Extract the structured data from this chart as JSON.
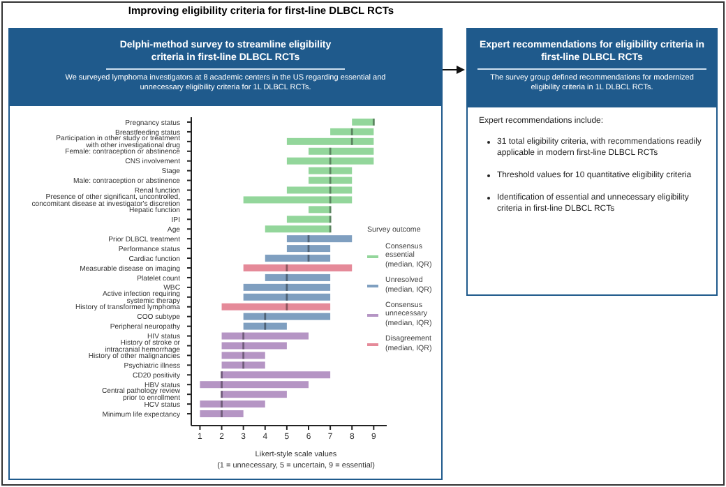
{
  "chart_data": {
    "type": "box",
    "orientation": "horizontal",
    "title": "Improving eligibility criteria for first-line DLBCL RCTs",
    "subtitle": "Delphi-method survey to streamline eligibility criteria in first-line DLBCL RCTs",
    "annotations": [
      "We surveyed lymphoma investigators at 8 academic centers in the US regarding essential and unnecessary eligibility criteria for 1L DLBCL RCTs.",
      "Expert recommendations for eligibility criteria in first-line DLBCL RCTs",
      "The survey group defined recommendations for modernized eligibility criteria in 1L DLBCL RCTs.",
      "Expert recommendations include:",
      "31 total eligibility criteria, with recommendations readily applicable in modern first-line DLBCL RCTs",
      "Threshold values for 10 quantitative eligibility criteria",
      "Identification of essential and unnecessary eligibility criteria in first-line DLBCL RCTs"
    ],
    "xlabel": "Likert-style scale values (1 = unnecessary, 5 = uncertain, 9 = essential)",
    "categories": [
      "Pregnancy status",
      "Breastfeeding status",
      "Participation in other study or treatment with other investigational drug",
      "Female: contraception or abstinence",
      "CNS involvement",
      "Stage",
      "Male: contraception or abstinence",
      "Renal function",
      "Presence of other significant, uncontrolled, concomitant disease at investigator's discretion",
      "Hepatic function",
      "IPI",
      "Age",
      "Prior DLBCL treatment",
      "Performance status",
      "Cardiac function",
      "Measurable disease on imaging",
      "Platelet count",
      "WBC",
      "Active infection requiring systemic therapy",
      "History of transformed lymphoma",
      "COO subtype",
      "Peripheral neuropathy",
      "HIV status",
      "History of stroke or intracranial hemorrhage",
      "History of other malignancies",
      "Psychiatric illness",
      "CD20 positivity",
      "HBV status",
      "Central pathology review prior to enrollment",
      "HCV status",
      "Minimum life expectancy"
    ],
    "series": [
      {
        "name": "Consensus essential (median, IQR)",
        "color": "#93d69b",
        "boxes": [
          {
            "low": 8,
            "q1": 8,
            "median": 9,
            "q3": 9,
            "high": 9
          },
          {
            "low": 7,
            "q1": 7,
            "median": 8,
            "q3": 9,
            "high": 9
          },
          {
            "low": 5,
            "q1": 5,
            "median": 8,
            "q3": 9,
            "high": 9
          },
          {
            "low": 6,
            "q1": 6,
            "median": 7,
            "q3": 9,
            "high": 9
          },
          {
            "low": 5,
            "q1": 5,
            "median": 7,
            "q3": 9,
            "high": 9
          },
          {
            "low": 6,
            "q1": 6,
            "median": 7,
            "q3": 8,
            "high": 8
          },
          {
            "low": 6,
            "q1": 6,
            "median": 7,
            "q3": 8,
            "high": 8
          },
          {
            "low": 5,
            "q1": 5,
            "median": 7,
            "q3": 8,
            "high": 8
          },
          {
            "low": 3,
            "q1": 3,
            "median": 7,
            "q3": 8,
            "high": 8
          },
          {
            "low": 6,
            "q1": 6,
            "median": 7,
            "q3": 7,
            "high": 7
          },
          {
            "low": 5,
            "q1": 5,
            "median": 7,
            "q3": 7,
            "high": 7
          },
          {
            "low": 4,
            "q1": 4,
            "median": 7,
            "q3": 7,
            "high": 7
          },
          null,
          null,
          null,
          null,
          null,
          null,
          null,
          null,
          null,
          null,
          null,
          null,
          null,
          null,
          null,
          null,
          null,
          null,
          null
        ]
      },
      {
        "name": "Unresolved (median, IQR)",
        "color": "#7f9fc0",
        "boxes": [
          null,
          null,
          null,
          null,
          null,
          null,
          null,
          null,
          null,
          null,
          null,
          null,
          {
            "low": 5,
            "q1": 5,
            "median": 6,
            "q3": 8,
            "high": 8
          },
          {
            "low": 5,
            "q1": 5,
            "median": 6,
            "q3": 7,
            "high": 7
          },
          {
            "low": 4,
            "q1": 4,
            "median": 6,
            "q3": 7,
            "high": 7
          },
          null,
          {
            "low": 4,
            "q1": 4,
            "median": 5,
            "q3": 7,
            "high": 7
          },
          {
            "low": 3,
            "q1": 3,
            "median": 5,
            "q3": 7,
            "high": 7
          },
          {
            "low": 3,
            "q1": 3,
            "median": 5,
            "q3": 7,
            "high": 7
          },
          null,
          {
            "low": 3,
            "q1": 3,
            "median": 4,
            "q3": 7,
            "high": 7
          },
          {
            "low": 3,
            "q1": 3,
            "median": 4,
            "q3": 5,
            "high": 5
          },
          null,
          null,
          null,
          null,
          null,
          null,
          null,
          null,
          null
        ]
      },
      {
        "name": "Consensus unnecessary (median, IQR)",
        "color": "#b595c4",
        "boxes": [
          null,
          null,
          null,
          null,
          null,
          null,
          null,
          null,
          null,
          null,
          null,
          null,
          null,
          null,
          null,
          null,
          null,
          null,
          null,
          null,
          null,
          null,
          {
            "low": 2,
            "q1": 2,
            "median": 3,
            "q3": 6,
            "high": 6
          },
          {
            "low": 2,
            "q1": 2,
            "median": 3,
            "q3": 5,
            "high": 5
          },
          {
            "low": 2,
            "q1": 2,
            "median": 3,
            "q3": 4,
            "high": 4
          },
          {
            "low": 2,
            "q1": 2,
            "median": 3,
            "q3": 4,
            "high": 4
          },
          {
            "low": 2,
            "q1": 2,
            "median": 2,
            "q3": 7,
            "high": 7
          },
          {
            "low": 1,
            "q1": 1,
            "median": 2,
            "q3": 6,
            "high": 6
          },
          {
            "low": 2,
            "q1": 2,
            "median": 2,
            "q3": 5,
            "high": 5
          },
          {
            "low": 1,
            "q1": 1,
            "median": 2,
            "q3": 4,
            "high": 4
          },
          {
            "low": 1,
            "q1": 1,
            "median": 2,
            "q3": 3,
            "high": 3
          }
        ]
      },
      {
        "name": "Disagreement (median, IQR)",
        "color": "#e58a99",
        "boxes": [
          null,
          null,
          null,
          null,
          null,
          null,
          null,
          null,
          null,
          null,
          null,
          null,
          null,
          null,
          null,
          {
            "low": 3,
            "q1": 3,
            "median": 5,
            "q3": 8,
            "high": 8
          },
          null,
          null,
          null,
          {
            "low": 2,
            "q1": 2,
            "median": 5,
            "q3": 7,
            "high": 7
          },
          null,
          null,
          null,
          null,
          null,
          null,
          null,
          null,
          null,
          null,
          null
        ]
      }
    ],
    "xlim": [
      0.6,
      9.6
    ],
    "xticks": [
      1,
      2,
      3,
      4,
      5,
      6,
      7,
      8,
      9
    ],
    "legend": "right",
    "legend_title": "Survey outcome"
  }
}
